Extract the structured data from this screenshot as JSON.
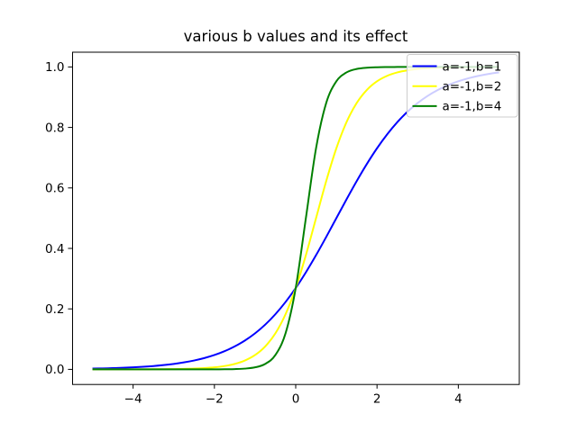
{
  "figure": {
    "background_color": "#ffffff",
    "frame_color": "#000000",
    "legend_frame_color": "#cccccc"
  },
  "chart_data": {
    "type": "line",
    "title": "various b values and its effect",
    "xlabel": "",
    "ylabel": "",
    "xlim": [
      -5.5,
      5.5
    ],
    "ylim": [
      -0.05,
      1.05
    ],
    "grid": false,
    "xticks": {
      "values": [
        -4,
        -2,
        0,
        2,
        4
      ],
      "labels": [
        "−4",
        "−2",
        "0",
        "2",
        "4"
      ]
    },
    "yticks": {
      "values": [
        0.0,
        0.2,
        0.4,
        0.6,
        0.8,
        1.0
      ],
      "labels": [
        "0.0",
        "0.2",
        "0.4",
        "0.6",
        "0.8",
        "1.0"
      ]
    },
    "legend": {
      "location": "upper right",
      "frame": true,
      "frame_alpha": 0.8
    },
    "x": [
      -5,
      -4.75,
      -4.5,
      -4.25,
      -4,
      -3.75,
      -3.5,
      -3.25,
      -3,
      -2.75,
      -2.5,
      -2.25,
      -2,
      -1.75,
      -1.5,
      -1.25,
      -1,
      -0.75,
      -0.5,
      -0.25,
      0,
      0.25,
      0.5,
      0.75,
      1,
      1.25,
      1.5,
      1.75,
      2,
      2.25,
      2.5,
      2.75,
      3,
      3.25,
      3.5,
      3.75,
      4,
      4.25,
      4.5,
      4.75,
      5
    ],
    "series": [
      {
        "name": "a=-1,b=1",
        "color": "#0000ff",
        "a": -1,
        "b": 1,
        "values": [
          0.0025,
          0.0032,
          0.0041,
          0.0052,
          0.0067,
          0.0086,
          0.011,
          0.0141,
          0.018,
          0.023,
          0.0293,
          0.0373,
          0.0474,
          0.0601,
          0.0759,
          0.0953,
          0.1192,
          0.148,
          0.1824,
          0.2227,
          0.2689,
          0.3208,
          0.3775,
          0.4378,
          0.5,
          0.5622,
          0.6225,
          0.6792,
          0.7311,
          0.7773,
          0.8176,
          0.852,
          0.8808,
          0.9046,
          0.9241,
          0.94,
          0.9526,
          0.9627,
          0.9707,
          0.977,
          0.982
        ]
      },
      {
        "name": "a=-1,b=2",
        "color": "#ffff00",
        "a": -1,
        "b": 2,
        "values": [
          0.0,
          0.0,
          0.0,
          0.0001,
          0.0001,
          0.0002,
          0.0003,
          0.0006,
          0.0009,
          0.0015,
          0.0025,
          0.0041,
          0.0067,
          0.011,
          0.018,
          0.0293,
          0.0474,
          0.0759,
          0.1192,
          0.1824,
          0.2689,
          0.3775,
          0.5,
          0.6225,
          0.7311,
          0.8176,
          0.8808,
          0.9241,
          0.9526,
          0.9707,
          0.982,
          0.989,
          0.9933,
          0.9959,
          0.9975,
          0.9985,
          0.9991,
          0.9994,
          0.9997,
          0.9998,
          0.9999
        ]
      },
      {
        "name": "a=-1,b=4",
        "color": "#008000",
        "a": -1,
        "b": 4,
        "values": [
          0.0,
          0.0,
          0.0,
          0.0,
          0.0,
          0.0,
          0.0,
          0.0,
          0.0,
          0.0,
          0.0,
          0.0,
          0.0001,
          0.0003,
          0.0009,
          0.0025,
          0.0067,
          0.018,
          0.0474,
          0.1192,
          0.2689,
          0.5,
          0.7311,
          0.8808,
          0.9526,
          0.982,
          0.9933,
          0.9975,
          0.9991,
          0.9997,
          0.9999,
          1.0,
          1.0,
          1.0,
          1.0,
          1.0,
          1.0,
          1.0,
          1.0,
          1.0,
          1.0
        ]
      }
    ]
  }
}
